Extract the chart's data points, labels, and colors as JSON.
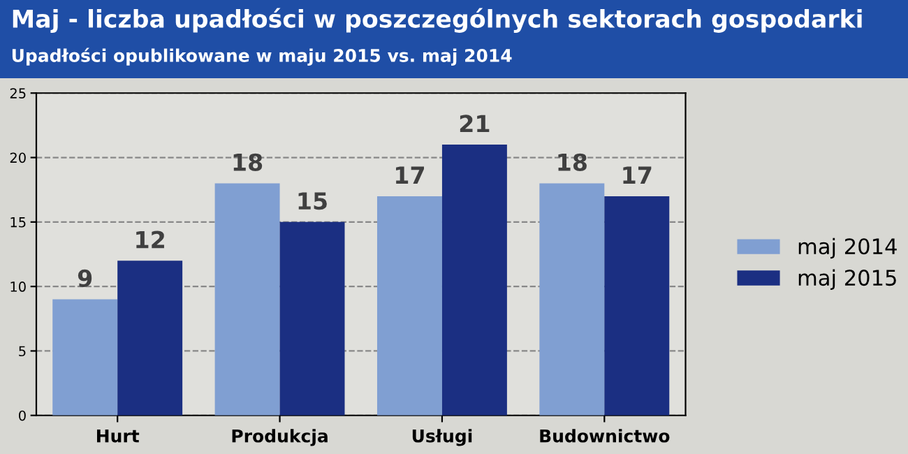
{
  "chart_data": {
    "type": "bar",
    "title": "Maj - liczba upadłości w poszczególnych sektorach gospodarki",
    "subtitle": "Upadłości opublikowane w maju 2015 vs. maj 2014",
    "categories": [
      "Hurt",
      "Produkcja",
      "Usługi",
      "Budownictwo"
    ],
    "series": [
      {
        "name": "maj 2014",
        "color": "#809fd2",
        "values": [
          9,
          18,
          17,
          18
        ]
      },
      {
        "name": "maj 2015",
        "color": "#1b2f82",
        "values": [
          12,
          15,
          21,
          17
        ]
      }
    ],
    "ylim": [
      0,
      25
    ],
    "yticks": [
      0,
      5,
      10,
      15,
      20,
      25
    ],
    "grid": "y",
    "legend": "right",
    "data_labels": true
  }
}
